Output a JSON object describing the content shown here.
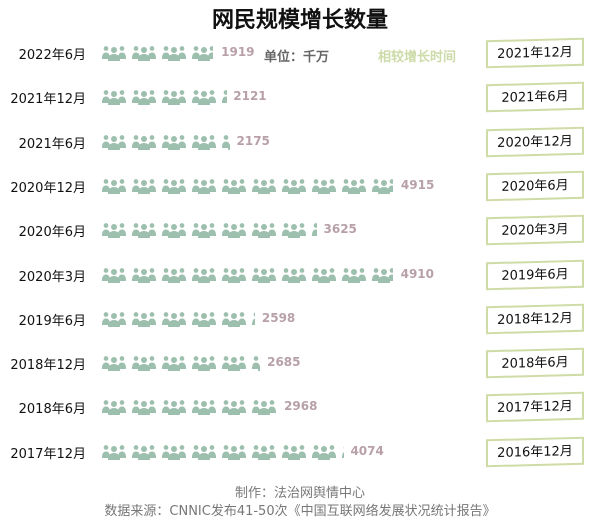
{
  "title": "网民规模增长数量",
  "unit": "单位：千万",
  "compare_header": "相较增长时间",
  "credit": "制作：法治网舆情中心",
  "source": "数据来源：CNNIC发布41-50次《中国互联网络发展状况统计报告》",
  "colors": {
    "icon": "#9dbfae",
    "value": "#b8a0a8",
    "box_border": "#cfdca6",
    "compare_header": "#cddba8"
  },
  "chart_data": {
    "type": "bar",
    "style": "pictogram",
    "icon": "people-group-icon",
    "categories": [
      "2022年6月",
      "2021年12月",
      "2021年6月",
      "2020年12月",
      "2020年6月",
      "2020年3月",
      "2019年6月",
      "2018年12月",
      "2018年6月",
      "2017年12月"
    ],
    "values": [
      1919,
      2121,
      2175,
      4915,
      3625,
      4910,
      2598,
      2685,
      2968,
      4074
    ],
    "value_labels": [
      "1919",
      "2121",
      "2175",
      "4915",
      "3625",
      "4910",
      "2598",
      "2685",
      "2968",
      "4074"
    ],
    "compared_to": [
      "2021年12月",
      "2021年6月",
      "2020年12月",
      "2020年6月",
      "2020年3月",
      "2019年6月",
      "2018年12月",
      "2018年6月",
      "2017年12月",
      "2016年12月"
    ]
  }
}
